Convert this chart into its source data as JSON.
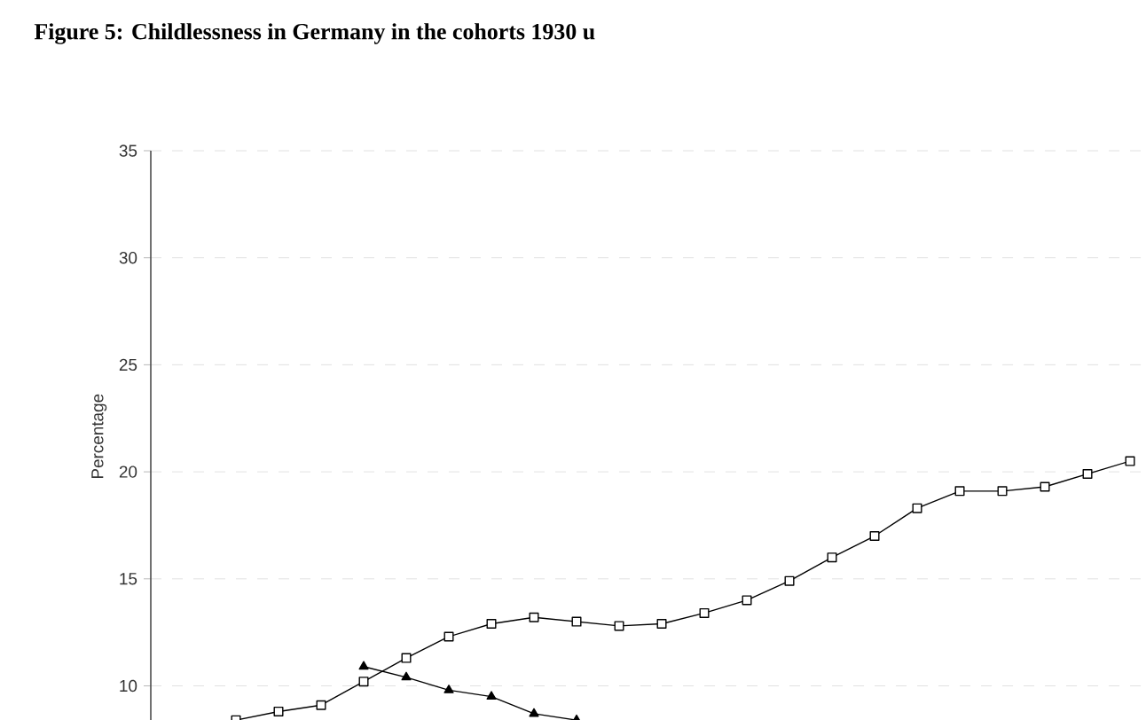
{
  "chart_data": {
    "type": "line",
    "title": "Figure 5:      Childlessness in Germany in the cohorts 1930 u",
    "ylabel": "Percentage",
    "categories": [
      null,
      null,
      null,
      null,
      null,
      null,
      null,
      null,
      null,
      null,
      null,
      null,
      null,
      null,
      null,
      null,
      null,
      null,
      null,
      null,
      null,
      null,
      null,
      null
    ],
    "series": [
      {
        "color": "#000000",
        "marker": "square",
        "values": [
          null,
          null,
          8.4,
          8.8,
          9.1,
          10.2,
          11.3,
          12.3,
          12.9,
          13.2,
          13.0,
          12.8,
          12.9,
          13.4,
          14.0,
          14.9,
          16.0,
          17.0,
          18.3,
          19.1,
          19.1,
          19.3,
          19.9,
          20.5
        ]
      },
      {
        "color": "#000000",
        "marker": "triangle",
        "values": [
          null,
          null,
          null,
          null,
          null,
          10.9,
          10.4,
          9.8,
          9.5,
          8.7,
          8.4,
          null,
          null,
          null,
          null,
          null,
          null,
          null,
          null,
          null,
          null,
          null,
          null,
          null
        ]
      }
    ],
    "ylim": [
      8.3,
      35
    ],
    "yticks": [
      10,
      15,
      20,
      25,
      30,
      35
    ],
    "grid": "y",
    "tick_labels": "y",
    "line_style": "solid"
  }
}
